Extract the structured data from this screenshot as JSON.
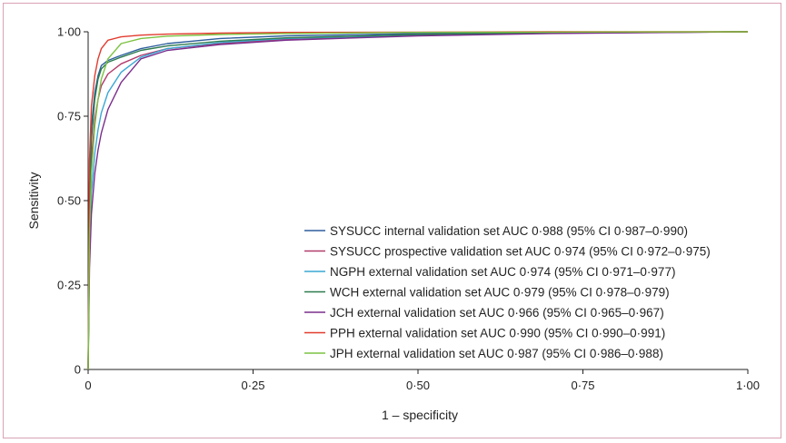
{
  "chart_data": {
    "type": "line",
    "title": "",
    "xlabel": "1 – specificity",
    "ylabel": "Sensitivity",
    "xlim": [
      0,
      1
    ],
    "ylim": [
      0,
      1
    ],
    "x_ticks": [
      0,
      0.25,
      0.5,
      0.75,
      1.0
    ],
    "x_tick_labels": [
      "0",
      "0·25",
      "0·50",
      "0·75",
      "1·00"
    ],
    "y_ticks": [
      0,
      0.25,
      0.5,
      0.75,
      1.0
    ],
    "y_tick_labels": [
      "0",
      "0·25",
      "0·50",
      "0·75",
      "1·00"
    ],
    "grid": false,
    "legend_position": "bottom-right",
    "series": [
      {
        "name": "SYSUCC internal validation set AUC 0·988 (95% CI 0·987–0·990)",
        "color": "#2e5f9e",
        "x": [
          0,
          0.002,
          0.005,
          0.01,
          0.015,
          0.02,
          0.03,
          0.05,
          0.08,
          0.12,
          0.2,
          0.3,
          0.5,
          0.7,
          1.0
        ],
        "y": [
          0,
          0.55,
          0.72,
          0.82,
          0.87,
          0.9,
          0.915,
          0.93,
          0.95,
          0.965,
          0.98,
          0.988,
          0.995,
          0.998,
          1.0
        ]
      },
      {
        "name": "SYSUCC prospective validation set AUC 0·974 (95% CI 0·972–0·975)",
        "color": "#b33a6a",
        "x": [
          0,
          0.002,
          0.005,
          0.01,
          0.015,
          0.02,
          0.03,
          0.05,
          0.08,
          0.12,
          0.2,
          0.3,
          0.5,
          0.7,
          1.0
        ],
        "y": [
          0,
          0.45,
          0.62,
          0.74,
          0.8,
          0.84,
          0.875,
          0.905,
          0.93,
          0.95,
          0.965,
          0.978,
          0.99,
          0.996,
          1.0
        ]
      },
      {
        "name": "NGPH external validation set AUC 0·974 (95% CI 0·971–0·977)",
        "color": "#3aa7d4",
        "x": [
          0,
          0.002,
          0.005,
          0.01,
          0.015,
          0.02,
          0.03,
          0.05,
          0.08,
          0.12,
          0.2,
          0.3,
          0.5,
          0.7,
          1.0
        ],
        "y": [
          0,
          0.35,
          0.52,
          0.64,
          0.71,
          0.76,
          0.82,
          0.88,
          0.925,
          0.95,
          0.968,
          0.98,
          0.99,
          0.996,
          1.0
        ]
      },
      {
        "name": "WCH external validation set AUC 0·979 (95% CI 0·978–0·979)",
        "color": "#2d7a4f",
        "x": [
          0,
          0.002,
          0.005,
          0.01,
          0.015,
          0.02,
          0.03,
          0.05,
          0.08,
          0.12,
          0.2,
          0.3,
          0.5,
          0.7,
          1.0
        ],
        "y": [
          0,
          0.5,
          0.68,
          0.8,
          0.86,
          0.89,
          0.91,
          0.925,
          0.945,
          0.958,
          0.972,
          0.982,
          0.992,
          0.997,
          1.0
        ]
      },
      {
        "name": "JCH external validation set AUC 0·966 (95% CI 0·965–0·967)",
        "color": "#7a2e8c",
        "x": [
          0,
          0.002,
          0.005,
          0.01,
          0.015,
          0.02,
          0.03,
          0.05,
          0.08,
          0.12,
          0.2,
          0.3,
          0.5,
          0.7,
          1.0
        ],
        "y": [
          0,
          0.3,
          0.46,
          0.58,
          0.65,
          0.7,
          0.77,
          0.85,
          0.92,
          0.945,
          0.962,
          0.975,
          0.988,
          0.995,
          1.0
        ]
      },
      {
        "name": "PPH external validation set AUC 0·990 (95% CI 0·990–0·991)",
        "color": "#e23b2e",
        "x": [
          0,
          0.002,
          0.005,
          0.01,
          0.015,
          0.02,
          0.03,
          0.05,
          0.08,
          0.12,
          0.2,
          0.3,
          0.5,
          0.7,
          1.0
        ],
        "y": [
          0,
          0.62,
          0.78,
          0.87,
          0.92,
          0.95,
          0.975,
          0.985,
          0.99,
          0.993,
          0.996,
          0.998,
          0.999,
          1.0,
          1.0
        ]
      },
      {
        "name": "JPH external validation set AUC 0·987 (95% CI 0·986–0·988)",
        "color": "#7cc242",
        "x": [
          0,
          0.002,
          0.005,
          0.01,
          0.015,
          0.02,
          0.03,
          0.05,
          0.08,
          0.12,
          0.2,
          0.3,
          0.5,
          0.7,
          1.0
        ],
        "y": [
          0,
          0.4,
          0.58,
          0.72,
          0.8,
          0.86,
          0.92,
          0.965,
          0.98,
          0.987,
          0.992,
          0.995,
          0.998,
          0.999,
          1.0
        ]
      }
    ]
  }
}
